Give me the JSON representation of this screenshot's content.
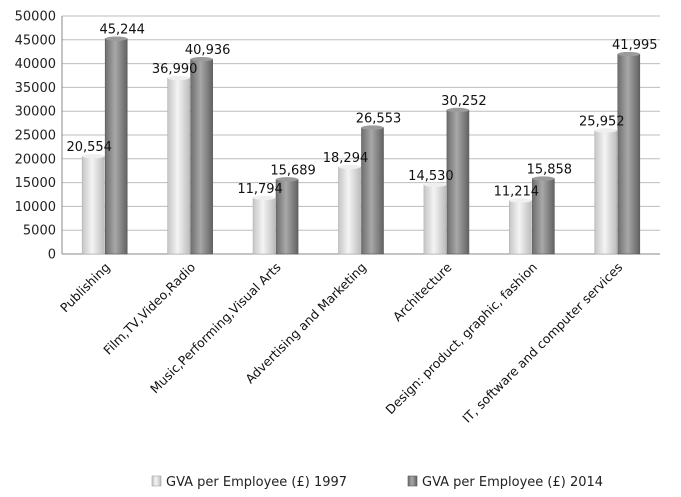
{
  "chart_data": {
    "type": "bar",
    "categories": [
      "Publishing",
      "Film,TV,Video,Radio",
      "Music,Performing,Visual Arts",
      "Advertising and Marketing",
      "Architecture",
      "Design: product, graphic, fashion",
      "IT, software and computer services"
    ],
    "series": [
      {
        "name": "GVA per Employee (£) 1997",
        "values": [
          20554,
          36990,
          11794,
          18294,
          14530,
          11214,
          25952
        ],
        "labels": [
          "20,554",
          "36,990",
          "11,794",
          "18,294",
          "14,530",
          "11,214",
          "25,952"
        ],
        "color": "#d9d9d9"
      },
      {
        "name": "GVA per Employee (£) 2014",
        "values": [
          45244,
          40936,
          15689,
          26553,
          30252,
          15858,
          41995
        ],
        "labels": [
          "45,244",
          "40,936",
          "15,689",
          "26,553",
          "30,252",
          "15,858",
          "41,995"
        ],
        "color": "#8c8c8c"
      }
    ],
    "ylim": [
      0,
      50000
    ],
    "yticks": [
      "0",
      "5000",
      "10000",
      "15000",
      "20000",
      "25000",
      "30000",
      "35000",
      "40000",
      "45000",
      "50000"
    ],
    "grid": true,
    "legend": "bottom"
  }
}
